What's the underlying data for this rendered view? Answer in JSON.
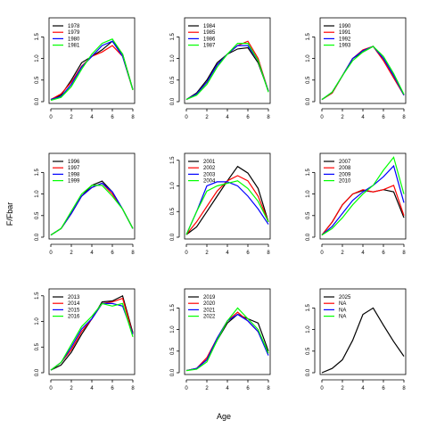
{
  "chart_data": {
    "type": "line",
    "xlabel": "Age",
    "ylabel": "F/Fbar",
    "x_ticks": [
      0,
      2,
      4,
      6,
      8
    ],
    "x_range": [
      0,
      8
    ],
    "colors": [
      "#000000",
      "#ff0000",
      "#0000ff",
      "#00ff00"
    ],
    "grid": false,
    "legend_position": "top-left",
    "panels": [
      {
        "ylim": [
          0,
          1.9
        ],
        "y_ticks": [
          0.0,
          0.5,
          1.0,
          1.5
        ],
        "y_tick_labels": [
          "0.0",
          "0.5",
          "1.0",
          "1.5"
        ],
        "series": [
          {
            "name": "1978",
            "x": [
              0,
              1,
              2,
              3,
              4,
              5,
              6,
              7,
              8
            ],
            "y": [
              0.05,
              0.15,
              0.5,
              0.9,
              1.05,
              1.2,
              1.4,
              1.1,
              0.28
            ]
          },
          {
            "name": "1979",
            "x": [
              0,
              1,
              2,
              3,
              4,
              5,
              6,
              7,
              8
            ],
            "y": [
              0.05,
              0.18,
              0.45,
              0.82,
              1.05,
              1.15,
              1.3,
              1.05,
              0.27
            ]
          },
          {
            "name": "1980",
            "x": [
              0,
              1,
              2,
              3,
              4,
              5,
              6,
              7,
              8
            ],
            "y": [
              0.05,
              0.12,
              0.4,
              0.8,
              1.05,
              1.3,
              1.4,
              1.05,
              0.28
            ]
          },
          {
            "name": "1981",
            "x": [
              0,
              1,
              2,
              3,
              4,
              5,
              6,
              7,
              8
            ],
            "y": [
              0.03,
              0.1,
              0.35,
              0.75,
              1.1,
              1.35,
              1.45,
              1.1,
              0.27
            ]
          }
        ]
      },
      {
        "ylim": [
          0,
          1.9
        ],
        "y_ticks": [
          0.0,
          0.5,
          1.0,
          1.5
        ],
        "y_tick_labels": [
          "0.0",
          "0.5",
          "1.0",
          "1.5"
        ],
        "series": [
          {
            "name": "1984",
            "x": [
              0,
              1,
              2,
              3,
              4,
              5,
              6,
              7,
              8
            ],
            "y": [
              0.05,
              0.2,
              0.5,
              0.9,
              1.1,
              1.22,
              1.25,
              0.9,
              0.25
            ]
          },
          {
            "name": "1985",
            "x": [
              0,
              1,
              2,
              3,
              4,
              5,
              6,
              7,
              8
            ],
            "y": [
              0.05,
              0.18,
              0.45,
              0.85,
              1.1,
              1.3,
              1.4,
              1.0,
              0.24
            ]
          },
          {
            "name": "1986",
            "x": [
              0,
              1,
              2,
              3,
              4,
              5,
              6,
              7,
              8
            ],
            "y": [
              0.05,
              0.18,
              0.45,
              0.85,
              1.1,
              1.3,
              1.3,
              0.95,
              0.24
            ]
          },
          {
            "name": "1987",
            "x": [
              0,
              1,
              2,
              3,
              4,
              5,
              6,
              7,
              8
            ],
            "y": [
              0.05,
              0.15,
              0.4,
              0.8,
              1.1,
              1.35,
              1.35,
              0.95,
              0.22
            ]
          }
        ]
      },
      {
        "ylim": [
          0,
          1.9
        ],
        "y_ticks": [
          0.0,
          0.5,
          1.0,
          1.5
        ],
        "y_tick_labels": [
          "0.0",
          "0.5",
          "1.0",
          "1.5"
        ],
        "series": [
          {
            "name": "1990",
            "x": [
              0,
              1,
              2,
              3,
              4,
              5,
              6,
              7,
              8
            ],
            "y": [
              0.05,
              0.2,
              0.6,
              1.0,
              1.15,
              1.28,
              1.0,
              0.6,
              0.15
            ]
          },
          {
            "name": "1991",
            "x": [
              0,
              1,
              2,
              3,
              4,
              5,
              6,
              7,
              8
            ],
            "y": [
              0.05,
              0.2,
              0.6,
              1.0,
              1.2,
              1.28,
              0.95,
              0.55,
              0.15
            ]
          },
          {
            "name": "1992",
            "x": [
              0,
              1,
              2,
              3,
              4,
              5,
              6,
              7,
              8
            ],
            "y": [
              0.05,
              0.22,
              0.6,
              1.0,
              1.18,
              1.28,
              1.0,
              0.6,
              0.15
            ]
          },
          {
            "name": "1993",
            "x": [
              0,
              1,
              2,
              3,
              4,
              5,
              6,
              7,
              8
            ],
            "y": [
              0.05,
              0.22,
              0.6,
              0.95,
              1.15,
              1.28,
              1.05,
              0.65,
              0.17
            ]
          }
        ]
      },
      {
        "ylim": [
          0,
          1.9
        ],
        "y_ticks": [
          0.0,
          0.5,
          1.0,
          1.5
        ],
        "y_tick_labels": [
          "0.0",
          "0.5",
          "1.0",
          "1.5"
        ],
        "series": [
          {
            "name": "1996",
            "x": [
              0,
              1,
              2,
              3,
              4,
              5,
              6,
              7,
              8
            ],
            "y": [
              0.05,
              0.2,
              0.55,
              0.95,
              1.2,
              1.3,
              1.05,
              0.65,
              0.2
            ]
          },
          {
            "name": "1997",
            "x": [
              0,
              1,
              2,
              3,
              4,
              5,
              6,
              7,
              8
            ],
            "y": [
              0.05,
              0.2,
              0.55,
              0.95,
              1.15,
              1.25,
              1.0,
              0.65,
              0.2
            ]
          },
          {
            "name": "1998",
            "x": [
              0,
              1,
              2,
              3,
              4,
              5,
              6,
              7,
              8
            ],
            "y": [
              0.05,
              0.2,
              0.55,
              0.95,
              1.15,
              1.25,
              1.05,
              0.65,
              0.2
            ]
          },
          {
            "name": "1999",
            "x": [
              0,
              1,
              2,
              3,
              4,
              5,
              6,
              7,
              8
            ],
            "y": [
              0.05,
              0.2,
              0.6,
              1.0,
              1.2,
              1.2,
              0.95,
              0.65,
              0.2
            ]
          }
        ]
      },
      {
        "ylim": [
          0,
          1.6
        ],
        "y_ticks": [
          0.0,
          0.5,
          1.0,
          1.5
        ],
        "y_tick_labels": [
          "0.0",
          "0.5",
          "1.0",
          "1.5"
        ],
        "series": [
          {
            "name": "2001",
            "x": [
              0,
              1,
              2,
              3,
              4,
              5,
              6,
              7,
              8
            ],
            "y": [
              0.05,
              0.2,
              0.5,
              0.8,
              1.1,
              1.38,
              1.25,
              0.95,
              0.3
            ]
          },
          {
            "name": "2002",
            "x": [
              0,
              1,
              2,
              3,
              4,
              5,
              6,
              7,
              8
            ],
            "y": [
              0.05,
              0.3,
              0.6,
              0.9,
              1.1,
              1.2,
              1.1,
              0.8,
              0.3
            ]
          },
          {
            "name": "2003",
            "x": [
              0,
              1,
              2,
              3,
              4,
              5,
              6,
              7,
              8
            ],
            "y": [
              0.05,
              0.5,
              1.0,
              1.08,
              1.08,
              1.0,
              0.8,
              0.55,
              0.25
            ]
          },
          {
            "name": "2004",
            "x": [
              0,
              1,
              2,
              3,
              4,
              5,
              6,
              7,
              8
            ],
            "y": [
              0.05,
              0.5,
              0.9,
              1.0,
              1.05,
              1.1,
              0.95,
              0.7,
              0.3
            ]
          }
        ]
      },
      {
        "ylim": [
          0,
          1.9
        ],
        "y_ticks": [
          0.0,
          0.5,
          1.0,
          1.5
        ],
        "y_tick_labels": [
          "0.0",
          "0.5",
          "1.0",
          "1.5"
        ],
        "series": [
          {
            "name": "2007",
            "x": [
              0,
              1,
              2,
              3,
              4,
              5,
              6,
              7,
              8
            ],
            "y": [
              0.05,
              0.35,
              0.75,
              1.0,
              1.08,
              1.05,
              1.1,
              1.05,
              0.45
            ]
          },
          {
            "name": "2008",
            "x": [
              0,
              1,
              2,
              3,
              4,
              5,
              6,
              7,
              8
            ],
            "y": [
              0.05,
              0.35,
              0.75,
              1.0,
              1.1,
              1.05,
              1.1,
              1.2,
              0.5
            ]
          },
          {
            "name": "2009",
            "x": [
              0,
              1,
              2,
              3,
              4,
              5,
              6,
              7,
              8
            ],
            "y": [
              0.05,
              0.25,
              0.55,
              0.85,
              1.05,
              1.2,
              1.4,
              1.65,
              0.8
            ]
          },
          {
            "name": "2010",
            "x": [
              0,
              1,
              2,
              3,
              4,
              5,
              6,
              7,
              8
            ],
            "y": [
              0.05,
              0.2,
              0.45,
              0.75,
              1.0,
              1.2,
              1.55,
              1.85,
              1.0
            ]
          }
        ]
      },
      {
        "ylim": [
          0,
          1.6
        ],
        "y_ticks": [
          0.0,
          0.5,
          1.0,
          1.5
        ],
        "y_tick_labels": [
          "0.0",
          "0.5",
          "1.0",
          "1.5"
        ],
        "series": [
          {
            "name": "2013",
            "x": [
              0,
              1,
              2,
              3,
              4,
              5,
              6,
              7,
              8
            ],
            "y": [
              0.05,
              0.15,
              0.4,
              0.75,
              1.05,
              1.38,
              1.4,
              1.5,
              0.78
            ]
          },
          {
            "name": "2014",
            "x": [
              0,
              1,
              2,
              3,
              4,
              5,
              6,
              7,
              8
            ],
            "y": [
              0.05,
              0.2,
              0.45,
              0.8,
              1.05,
              1.35,
              1.38,
              1.45,
              0.75
            ]
          },
          {
            "name": "2015",
            "x": [
              0,
              1,
              2,
              3,
              4,
              5,
              6,
              7,
              8
            ],
            "y": [
              0.05,
              0.2,
              0.5,
              0.85,
              1.05,
              1.35,
              1.35,
              1.3,
              0.75
            ]
          },
          {
            "name": "2016",
            "x": [
              0,
              1,
              2,
              3,
              4,
              5,
              6,
              7,
              8
            ],
            "y": [
              0.05,
              0.2,
              0.55,
              0.9,
              1.1,
              1.35,
              1.3,
              1.35,
              0.7
            ]
          }
        ]
      },
      {
        "ylim": [
          0,
          1.9
        ],
        "y_ticks": [
          0.0,
          0.5,
          1.0,
          1.5
        ],
        "y_tick_labels": [
          "0.0",
          "0.5",
          "1.0",
          "1.5"
        ],
        "series": [
          {
            "name": "2019",
            "x": [
              0,
              1,
              2,
              3,
              4,
              5,
              6,
              7,
              8
            ],
            "y": [
              0.05,
              0.1,
              0.3,
              0.75,
              1.15,
              1.35,
              1.25,
              1.15,
              0.5
            ]
          },
          {
            "name": "2020",
            "x": [
              0,
              1,
              2,
              3,
              4,
              5,
              6,
              7,
              8
            ],
            "y": [
              0.05,
              0.1,
              0.35,
              0.8,
              1.2,
              1.4,
              1.2,
              0.95,
              0.45
            ]
          },
          {
            "name": "2021",
            "x": [
              0,
              1,
              2,
              3,
              4,
              5,
              6,
              7,
              8
            ],
            "y": [
              0.05,
              0.1,
              0.3,
              0.8,
              1.2,
              1.35,
              1.2,
              0.95,
              0.4
            ]
          },
          {
            "name": "2022",
            "x": [
              0,
              1,
              2,
              3,
              4,
              5,
              6,
              7,
              8
            ],
            "y": [
              0.05,
              0.08,
              0.25,
              0.75,
              1.2,
              1.5,
              1.25,
              1.0,
              0.45
            ]
          }
        ]
      },
      {
        "ylim": [
          0,
          1.9
        ],
        "y_ticks": [
          0.0,
          0.5,
          1.0,
          1.5
        ],
        "y_tick_labels": [
          "0.0",
          "0.5",
          "1.0",
          "1.5"
        ],
        "series": [
          {
            "name": "2025",
            "x": [
              0,
              1,
              2,
              3,
              4,
              5,
              6,
              7,
              8
            ],
            "y": [
              0.0,
              0.1,
              0.3,
              0.75,
              1.35,
              1.5,
              1.1,
              0.72,
              0.38
            ]
          },
          {
            "name": "NA",
            "x": [],
            "y": []
          },
          {
            "name": "NA",
            "x": [],
            "y": []
          },
          {
            "name": "NA",
            "x": [],
            "y": []
          }
        ]
      }
    ]
  }
}
